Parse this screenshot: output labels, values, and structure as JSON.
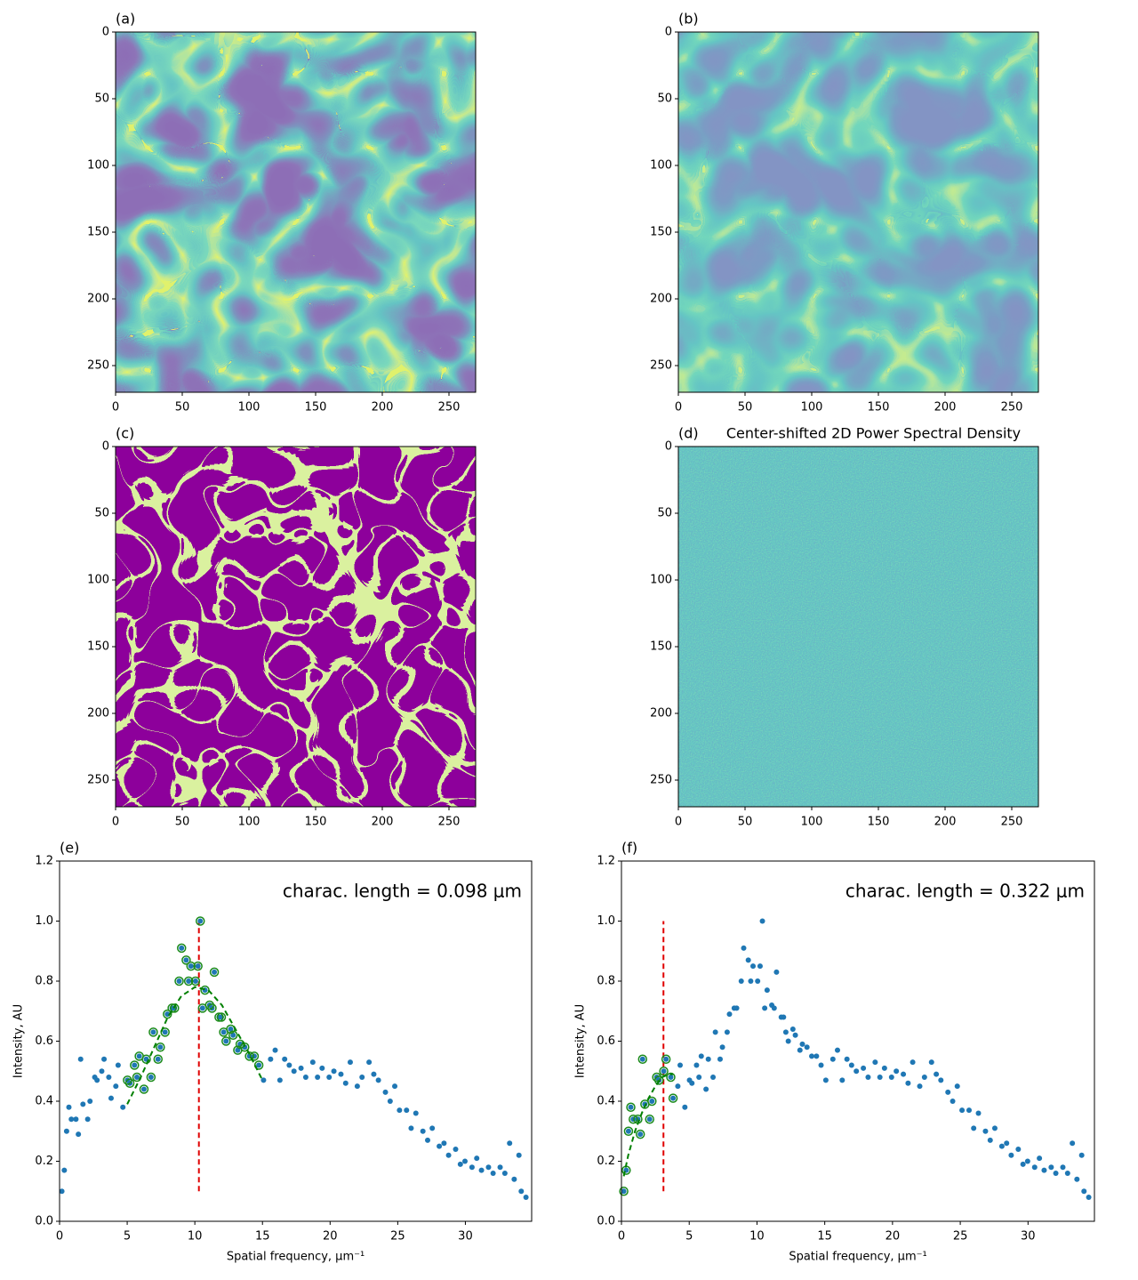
{
  "chart_data": [
    {
      "type": "image",
      "title": "(a)",
      "colormap": "viridis",
      "xlim": [
        0,
        270
      ],
      "ylim": [
        270,
        0
      ],
      "xticks": [
        0,
        50,
        100,
        150,
        200,
        250
      ],
      "yticks": [
        0,
        50,
        100,
        150,
        200,
        250
      ]
    },
    {
      "type": "image",
      "title": "(b)",
      "colormap": "viridis",
      "xlim": [
        0,
        270
      ],
      "ylim": [
        270,
        0
      ],
      "xticks": [
        0,
        50,
        100,
        150,
        200,
        250
      ],
      "yticks": [
        0,
        50,
        100,
        150,
        200,
        250
      ]
    },
    {
      "type": "image",
      "title": "(c)",
      "colormap": "viridis",
      "xlim": [
        0,
        270
      ],
      "ylim": [
        270,
        0
      ],
      "xticks": [
        0,
        50,
        100,
        150,
        200,
        250
      ],
      "yticks": [
        0,
        50,
        100,
        150,
        200,
        250
      ]
    },
    {
      "type": "image",
      "title": "(d)",
      "subtitle": "Center-shifted 2D Power Spectral Density",
      "colormap": "viridis",
      "xlim": [
        0,
        270
      ],
      "ylim": [
        270,
        0
      ],
      "xticks": [
        0,
        50,
        100,
        150,
        200,
        250
      ],
      "yticks": [
        0,
        50,
        100,
        150,
        200,
        250
      ]
    },
    {
      "type": "scatter",
      "title": "(e)",
      "annotation": "charac. length = 0.098 μm",
      "x_label": "Spatial frequency, μm⁻¹",
      "y_label": "Intensity, AU",
      "xlim": [
        0,
        34.9
      ],
      "ylim": [
        0,
        1.2
      ],
      "xticks": [
        0,
        5,
        10,
        15,
        20,
        25,
        30
      ],
      "yticks": [
        {
          "value": 0,
          "label": "0.0"
        },
        {
          "value": 0.2,
          "label": "0.2"
        },
        {
          "value": 0.4,
          "label": "0.4"
        },
        {
          "value": 0.6,
          "label": "0.6"
        },
        {
          "value": 0.8,
          "label": "0.8"
        },
        {
          "value": 1.0,
          "label": "1.0"
        },
        {
          "value": 1.2,
          "label": "1.2"
        }
      ],
      "series": [
        {
          "style": "points",
          "color": "#1f77b4",
          "x": [
            0.17,
            0.35,
            0.52,
            0.69,
            0.87,
            1.21,
            1.39,
            1.56,
            1.73,
            2.08,
            2.25,
            2.6,
            2.77,
            3.12,
            3.29,
            3.64,
            3.81,
            4.16,
            4.33,
            4.68,
            5.02,
            5.2,
            5.54,
            5.72,
            5.89,
            6.24,
            6.41,
            6.76,
            6.93,
            7.28,
            7.45,
            7.8,
            7.97,
            8.32,
            8.5,
            8.84,
            9.02,
            9.36,
            9.54,
            9.71,
            10.05,
            10.23,
            10.4,
            10.57,
            10.75,
            11.09,
            11.27,
            11.44,
            11.79,
            11.96,
            12.13,
            12.31,
            12.65,
            12.83,
            13.17,
            13.35,
            13.69,
            14.04,
            14.39,
            14.73,
            15.08,
            15.6,
            15.94,
            16.29,
            16.64,
            16.98,
            17.33,
            17.85,
            18.2,
            18.72,
            19.07,
            19.41,
            19.93,
            20.28,
            20.8,
            21.15,
            21.49,
            22.01,
            22.36,
            22.88,
            23.23,
            23.57,
            24.09,
            24.44,
            24.78,
            25.13,
            25.65,
            25.99,
            26.34,
            26.86,
            27.21,
            27.55,
            28.07,
            28.42,
            28.76,
            29.28,
            29.63,
            29.97,
            30.49,
            30.84,
            31.19,
            31.71,
            32.05,
            32.57,
            32.92,
            33.27,
            33.61,
            33.96,
            34.13,
            34.48
          ],
          "values": [
            0.1,
            0.17,
            0.3,
            0.38,
            0.34,
            0.34,
            0.29,
            0.54,
            0.39,
            0.34,
            0.4,
            0.48,
            0.47,
            0.5,
            0.54,
            0.48,
            0.41,
            0.45,
            0.52,
            0.38,
            0.47,
            0.46,
            0.52,
            0.48,
            0.55,
            0.44,
            0.54,
            0.48,
            0.63,
            0.54,
            0.58,
            0.63,
            0.69,
            0.71,
            0.71,
            0.8,
            0.91,
            0.87,
            0.8,
            0.85,
            0.8,
            0.85,
            1.0,
            0.71,
            0.77,
            0.72,
            0.71,
            0.83,
            0.68,
            0.68,
            0.63,
            0.6,
            0.64,
            0.62,
            0.57,
            0.59,
            0.58,
            0.55,
            0.55,
            0.52,
            0.47,
            0.54,
            0.57,
            0.47,
            0.54,
            0.52,
            0.5,
            0.51,
            0.48,
            0.53,
            0.48,
            0.51,
            0.48,
            0.5,
            0.49,
            0.46,
            0.53,
            0.45,
            0.48,
            0.53,
            0.49,
            0.47,
            0.43,
            0.4,
            0.45,
            0.37,
            0.37,
            0.31,
            0.36,
            0.3,
            0.27,
            0.31,
            0.25,
            0.26,
            0.22,
            0.24,
            0.19,
            0.2,
            0.18,
            0.21,
            0.17,
            0.18,
            0.16,
            0.18,
            0.16,
            0.26,
            0.14,
            0.22,
            0.1,
            0.08
          ]
        },
        {
          "style": "rings",
          "color": "#1a8a1a",
          "x": [
            5.02,
            5.2,
            5.54,
            5.72,
            5.89,
            6.24,
            6.41,
            6.76,
            6.93,
            7.28,
            7.45,
            7.8,
            7.97,
            8.32,
            8.5,
            8.84,
            9.02,
            9.36,
            9.54,
            9.71,
            10.05,
            10.23,
            10.4,
            10.57,
            10.75,
            11.09,
            11.27,
            11.44,
            11.79,
            11.96,
            12.13,
            12.31,
            12.65,
            12.83,
            13.17,
            13.35,
            13.69,
            14.04,
            14.39,
            14.73
          ],
          "values": [
            0.47,
            0.46,
            0.52,
            0.48,
            0.55,
            0.44,
            0.54,
            0.48,
            0.63,
            0.54,
            0.58,
            0.63,
            0.69,
            0.71,
            0.71,
            0.8,
            0.91,
            0.87,
            0.8,
            0.85,
            0.8,
            0.85,
            1.0,
            0.71,
            0.77,
            0.72,
            0.71,
            0.83,
            0.68,
            0.68,
            0.63,
            0.6,
            0.64,
            0.62,
            0.57,
            0.59,
            0.58,
            0.55,
            0.55,
            0.52
          ]
        },
        {
          "style": "dashed",
          "color": "#008000",
          "x": [
            5,
            6,
            7,
            8,
            9,
            10,
            11,
            12,
            13,
            14,
            15
          ],
          "values": [
            0.39,
            0.48,
            0.58,
            0.68,
            0.75,
            0.78,
            0.77,
            0.72,
            0.64,
            0.56,
            0.47
          ]
        }
      ],
      "vline": {
        "x": 10.3,
        "ymin": 0.1,
        "ymax": 1.0,
        "color": "#e00000"
      }
    },
    {
      "type": "scatter",
      "title": "(f)",
      "annotation": "charac. length = 0.322 μm",
      "x_label": "Spatial frequency, μm⁻¹",
      "y_label": "Intensity, AU",
      "xlim": [
        0,
        34.9
      ],
      "ylim": [
        0,
        1.2
      ],
      "xticks": [
        0,
        5,
        10,
        15,
        20,
        25,
        30
      ],
      "yticks": [
        {
          "value": 0,
          "label": "0.0"
        },
        {
          "value": 0.2,
          "label": "0.2"
        },
        {
          "value": 0.4,
          "label": "0.4"
        },
        {
          "value": 0.6,
          "label": "0.6"
        },
        {
          "value": 0.8,
          "label": "0.8"
        },
        {
          "value": 1.0,
          "label": "1.0"
        },
        {
          "value": 1.2,
          "label": "1.2"
        }
      ],
      "series": [
        {
          "style": "points",
          "color": "#1f77b4",
          "x": [
            0.17,
            0.35,
            0.52,
            0.69,
            0.87,
            1.21,
            1.39,
            1.56,
            1.73,
            2.08,
            2.25,
            2.6,
            2.77,
            3.12,
            3.29,
            3.64,
            3.81,
            4.16,
            4.33,
            4.68,
            5.02,
            5.2,
            5.54,
            5.72,
            5.89,
            6.24,
            6.41,
            6.76,
            6.93,
            7.28,
            7.45,
            7.8,
            7.97,
            8.32,
            8.5,
            8.84,
            9.02,
            9.36,
            9.54,
            9.71,
            10.05,
            10.23,
            10.4,
            10.57,
            10.75,
            11.09,
            11.27,
            11.44,
            11.79,
            11.96,
            12.13,
            12.31,
            12.65,
            12.83,
            13.17,
            13.35,
            13.69,
            14.04,
            14.39,
            14.73,
            15.08,
            15.6,
            15.94,
            16.29,
            16.64,
            16.98,
            17.33,
            17.85,
            18.2,
            18.72,
            19.07,
            19.41,
            19.93,
            20.28,
            20.8,
            21.15,
            21.49,
            22.01,
            22.36,
            22.88,
            23.23,
            23.57,
            24.09,
            24.44,
            24.78,
            25.13,
            25.65,
            25.99,
            26.34,
            26.86,
            27.21,
            27.55,
            28.07,
            28.42,
            28.76,
            29.28,
            29.63,
            29.97,
            30.49,
            30.84,
            31.19,
            31.71,
            32.05,
            32.57,
            32.92,
            33.27,
            33.61,
            33.96,
            34.13,
            34.48
          ],
          "values": [
            0.1,
            0.17,
            0.3,
            0.38,
            0.34,
            0.34,
            0.29,
            0.54,
            0.39,
            0.34,
            0.4,
            0.48,
            0.47,
            0.5,
            0.54,
            0.48,
            0.41,
            0.45,
            0.52,
            0.38,
            0.47,
            0.46,
            0.52,
            0.48,
            0.55,
            0.44,
            0.54,
            0.48,
            0.63,
            0.54,
            0.58,
            0.63,
            0.69,
            0.71,
            0.71,
            0.8,
            0.91,
            0.87,
            0.8,
            0.85,
            0.8,
            0.85,
            1.0,
            0.71,
            0.77,
            0.72,
            0.71,
            0.83,
            0.68,
            0.68,
            0.63,
            0.6,
            0.64,
            0.62,
            0.57,
            0.59,
            0.58,
            0.55,
            0.55,
            0.52,
            0.47,
            0.54,
            0.57,
            0.47,
            0.54,
            0.52,
            0.5,
            0.51,
            0.48,
            0.53,
            0.48,
            0.51,
            0.48,
            0.5,
            0.49,
            0.46,
            0.53,
            0.45,
            0.48,
            0.53,
            0.49,
            0.47,
            0.43,
            0.4,
            0.45,
            0.37,
            0.37,
            0.31,
            0.36,
            0.3,
            0.27,
            0.31,
            0.25,
            0.26,
            0.22,
            0.24,
            0.19,
            0.2,
            0.18,
            0.21,
            0.17,
            0.18,
            0.16,
            0.18,
            0.16,
            0.26,
            0.14,
            0.22,
            0.1,
            0.08
          ]
        },
        {
          "style": "rings",
          "color": "#1a8a1a",
          "x": [
            0.17,
            0.35,
            0.52,
            0.69,
            0.87,
            1.21,
            1.39,
            1.56,
            1.73,
            2.08,
            2.25,
            2.6,
            2.77,
            3.12,
            3.29,
            3.64,
            3.81
          ],
          "values": [
            0.1,
            0.17,
            0.3,
            0.38,
            0.34,
            0.34,
            0.29,
            0.54,
            0.39,
            0.34,
            0.4,
            0.48,
            0.47,
            0.5,
            0.54,
            0.48,
            0.41
          ]
        },
        {
          "style": "dashed",
          "color": "#008000",
          "x": [
            0.17,
            0.5,
            1,
            1.5,
            2,
            2.5,
            3,
            3.5,
            3.8
          ],
          "values": [
            0.15,
            0.22,
            0.3,
            0.36,
            0.41,
            0.45,
            0.48,
            0.49,
            0.49
          ]
        }
      ],
      "vline": {
        "x": 3.1,
        "ymin": 0.1,
        "ymax": 1.0,
        "color": "#e00000"
      }
    }
  ]
}
